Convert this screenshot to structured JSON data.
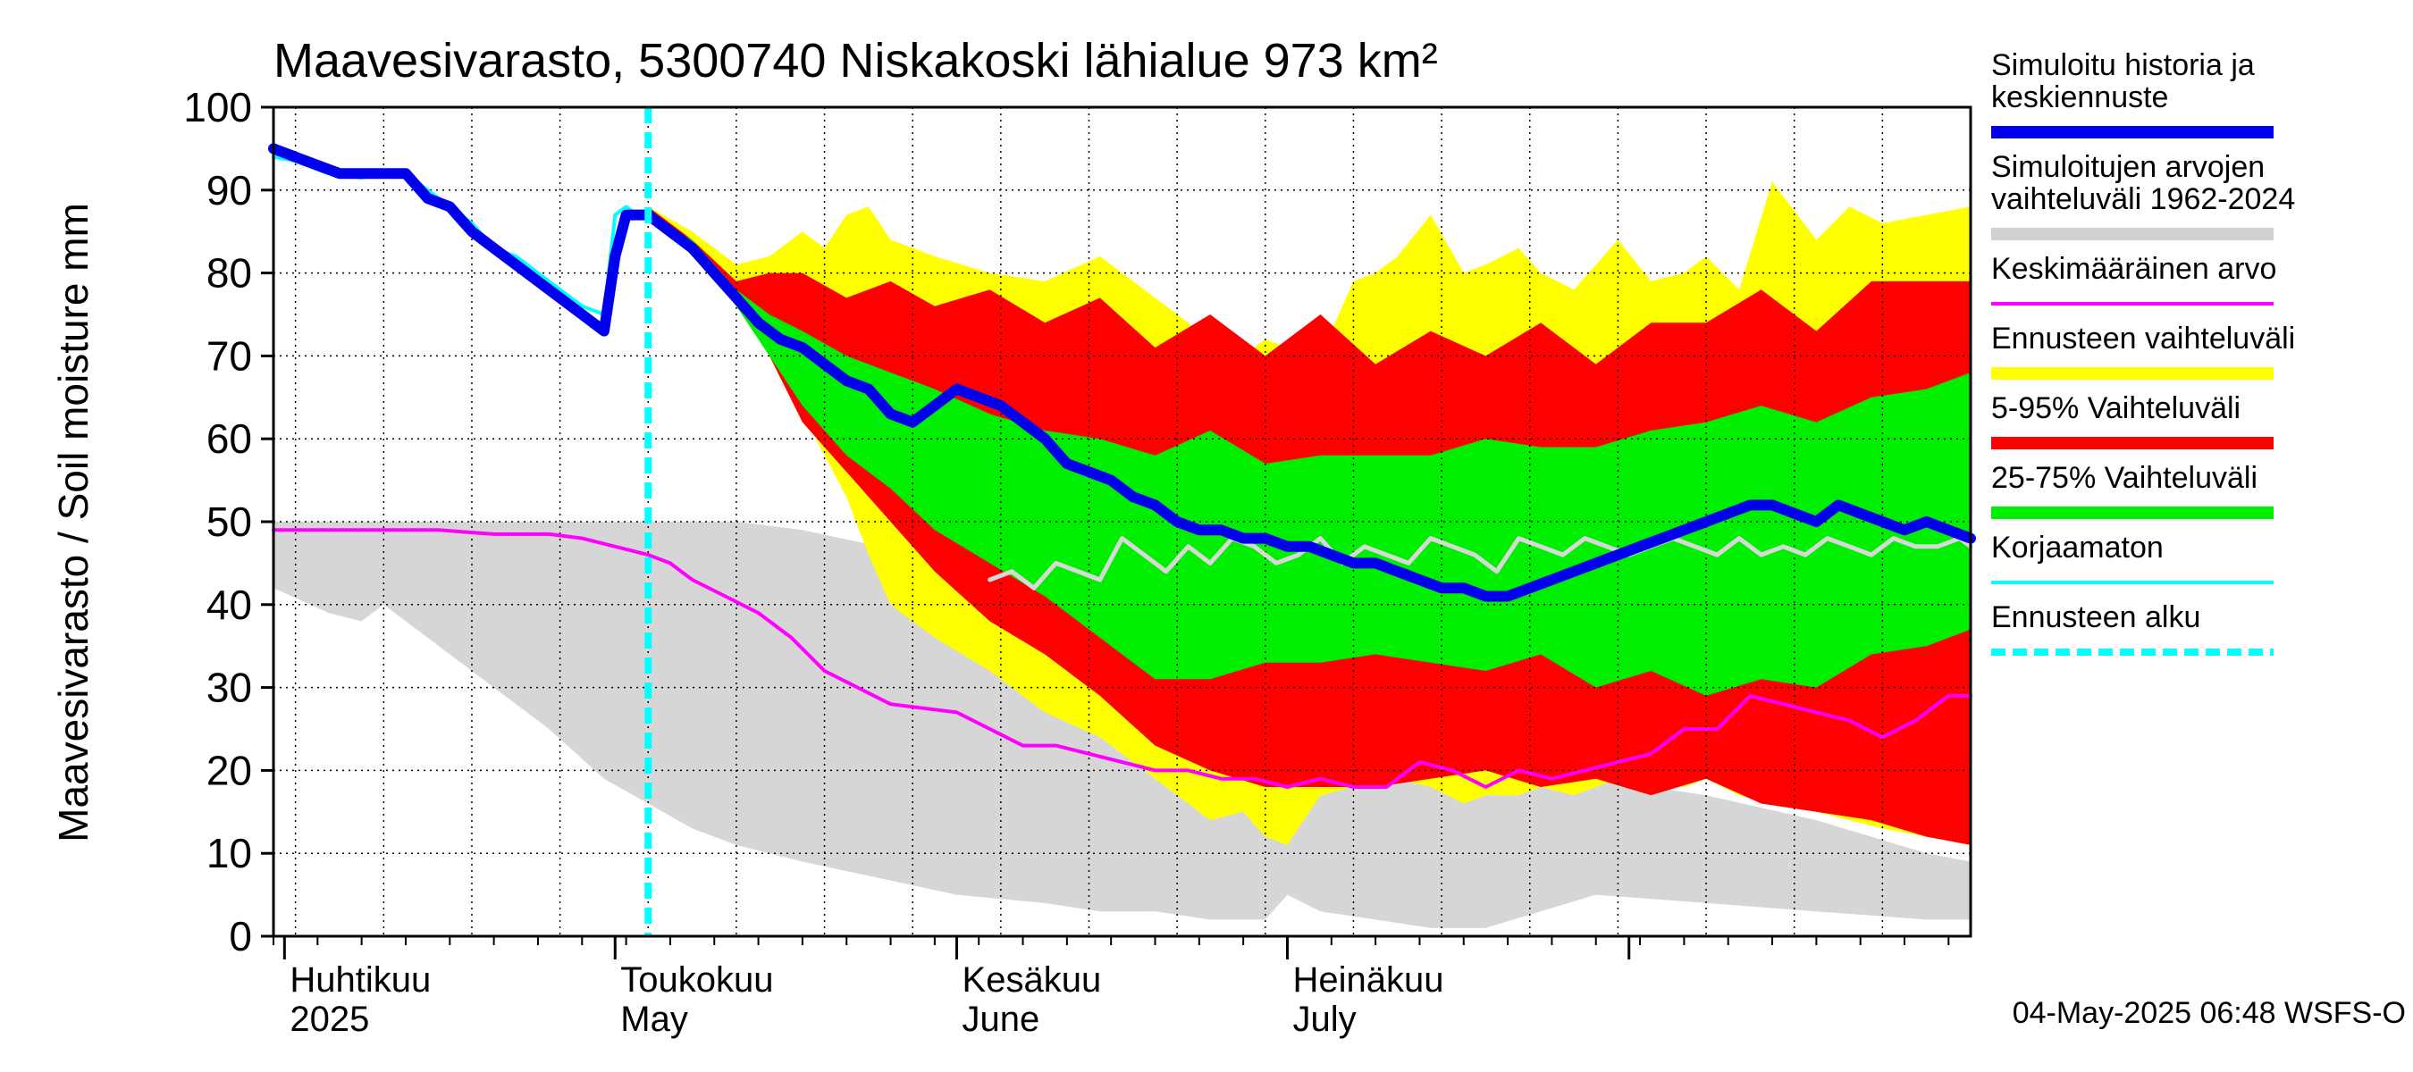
{
  "chart_data": {
    "type": "area",
    "title": "Maavesivarasto, 5300740 Niskakoski lähialue 973 km²",
    "ylabel": "Maavesivarasto / Soil moisture   mm",
    "ylim": [
      0,
      100
    ],
    "yticks": [
      0,
      10,
      20,
      30,
      40,
      50,
      60,
      70,
      80,
      90,
      100
    ],
    "x_unit": "day of year 2025",
    "xlim": [
      90,
      244
    ],
    "forecast_start_day": 124,
    "month_labels": [
      {
        "day": 91,
        "fi": "Huhtikuu",
        "en": "2025"
      },
      {
        "day": 121,
        "fi": "Toukokuu",
        "en": "May"
      },
      {
        "day": 152,
        "fi": "Kesäkuu",
        "en": "June"
      },
      {
        "day": 182,
        "fi": "Heinäkuu",
        "en": "July"
      }
    ],
    "month_boundaries": [
      91,
      121,
      152,
      182,
      213
    ],
    "historical_range": {
      "x": [
        90,
        95,
        98,
        100,
        102,
        105,
        110,
        115,
        120,
        124,
        128,
        132,
        138,
        145,
        152,
        160,
        165,
        170,
        175,
        180,
        182,
        185,
        190,
        195,
        200,
        210,
        220,
        230,
        240,
        244
      ],
      "upper": [
        50,
        50,
        50,
        50,
        50,
        50,
        50,
        50,
        50,
        50,
        50,
        50,
        49,
        47,
        44,
        40,
        36,
        33,
        30,
        26,
        25,
        24,
        22,
        21,
        20,
        19,
        17,
        14,
        10,
        9
      ],
      "lower": [
        42,
        39,
        38,
        40,
        38,
        35,
        30,
        25,
        19,
        16,
        13,
        11,
        9,
        7,
        5,
        4,
        3,
        3,
        2,
        2,
        5,
        3,
        2,
        1,
        1,
        5,
        4,
        3,
        2,
        2
      ]
    },
    "series": [
      {
        "name": "Ennusteen vaihteluväli",
        "kind": "band",
        "x": [
          124,
          128,
          132,
          135,
          138,
          140,
          142,
          144,
          146,
          150,
          155,
          160,
          165,
          170,
          173,
          175,
          178,
          180,
          182,
          185,
          188,
          190,
          192,
          195,
          198,
          200,
          203,
          205,
          208,
          212,
          215,
          218,
          220,
          223,
          226,
          230,
          233,
          236,
          240,
          244
        ],
        "upper": [
          88,
          85,
          81,
          82,
          85,
          83,
          87,
          88,
          84,
          82,
          80,
          79,
          82,
          77,
          74,
          71,
          70,
          72,
          71,
          70,
          79,
          80,
          82,
          87,
          80,
          81,
          83,
          80,
          78,
          84,
          79,
          80,
          82,
          78,
          91,
          84,
          88,
          86,
          87,
          88
        ],
        "lower": [
          87,
          82,
          76,
          72,
          63,
          58,
          53,
          46,
          40,
          36,
          32,
          27,
          24,
          19,
          16,
          14,
          15,
          12,
          11,
          17,
          18,
          20,
          19,
          18,
          16,
          17,
          17,
          18,
          17,
          19,
          18,
          18,
          19,
          17,
          16,
          15,
          14,
          13,
          12,
          11
        ]
      },
      {
        "name": "5-95% Vaihteluväli",
        "kind": "band",
        "x": [
          124,
          128,
          132,
          135,
          138,
          142,
          146,
          150,
          155,
          160,
          165,
          170,
          175,
          180,
          185,
          190,
          195,
          200,
          205,
          210,
          215,
          220,
          225,
          230,
          235,
          240,
          244
        ],
        "upper": [
          88,
          84,
          79,
          80,
          80,
          77,
          79,
          76,
          78,
          74,
          77,
          71,
          75,
          70,
          75,
          69,
          73,
          70,
          74,
          69,
          74,
          74,
          78,
          73,
          79,
          79,
          79
        ],
        "lower": [
          87,
          83,
          77,
          70,
          62,
          56,
          50,
          44,
          38,
          34,
          29,
          23,
          20,
          18,
          18,
          18,
          19,
          20,
          18,
          19,
          17,
          19,
          16,
          15,
          14,
          12,
          11
        ]
      },
      {
        "name": "25-75% Vaihteluväli",
        "kind": "band",
        "x": [
          124,
          128,
          132,
          135,
          138,
          142,
          146,
          150,
          155,
          160,
          165,
          170,
          175,
          180,
          185,
          190,
          195,
          200,
          205,
          210,
          215,
          220,
          225,
          230,
          235,
          240,
          244
        ],
        "upper": [
          87,
          84,
          78,
          75,
          73,
          70,
          68,
          66,
          63,
          61,
          60,
          58,
          61,
          57,
          58,
          58,
          58,
          60,
          59,
          59,
          61,
          62,
          64,
          62,
          65,
          66,
          68
        ],
        "lower": [
          87,
          83,
          76,
          70,
          64,
          58,
          54,
          49,
          45,
          41,
          36,
          31,
          31,
          33,
          33,
          34,
          33,
          32,
          34,
          30,
          32,
          29,
          31,
          30,
          34,
          35,
          37
        ]
      },
      {
        "name": "Simuloitujen arvojen vaihteluväli 1962-2024 (median of uncorrected)",
        "kind": "line",
        "color": "#d8d8d8",
        "x": [
          155,
          157,
          159,
          161,
          163,
          165,
          167,
          169,
          171,
          173,
          175,
          177,
          179,
          181,
          183,
          185,
          187,
          189,
          191,
          193,
          195,
          197,
          199,
          201,
          203,
          205,
          207,
          209,
          211,
          213,
          215,
          217,
          219,
          221,
          223,
          225,
          227,
          229,
          231,
          233,
          235,
          237,
          239,
          241,
          243,
          244
        ],
        "y": [
          43,
          44,
          42,
          45,
          44,
          43,
          48,
          46,
          44,
          47,
          45,
          48,
          47,
          45,
          46,
          48,
          45,
          47,
          46,
          45,
          48,
          47,
          46,
          44,
          48,
          47,
          46,
          48,
          47,
          46,
          47,
          48,
          47,
          46,
          48,
          46,
          47,
          46,
          48,
          47,
          46,
          48,
          47,
          47,
          48,
          47
        ]
      },
      {
        "name": "Keskimääräinen arvo",
        "kind": "line",
        "color": "#ff00ff",
        "x": [
          90,
          95,
          100,
          105,
          110,
          115,
          118,
          121,
          124,
          126,
          128,
          131,
          134,
          137,
          140,
          143,
          146,
          149,
          152,
          155,
          158,
          161,
          164,
          167,
          170,
          173,
          176,
          179,
          182,
          185,
          188,
          191,
          194,
          197,
          200,
          203,
          206,
          209,
          212,
          215,
          218,
          221,
          224,
          227,
          230,
          233,
          236,
          239,
          242,
          244
        ],
        "y": [
          49,
          49,
          49,
          49,
          48.5,
          48.5,
          48,
          47,
          46,
          45,
          43,
          41,
          39,
          36,
          32,
          30,
          28,
          27.5,
          27,
          25,
          23,
          23,
          22,
          21,
          20,
          20,
          19,
          19,
          18,
          19,
          18,
          18,
          21,
          20,
          18,
          20,
          19,
          20,
          21,
          22,
          25,
          25,
          29,
          28,
          27,
          26,
          24,
          26,
          29,
          29
        ]
      },
      {
        "name": "Korjaamaton",
        "kind": "line",
        "color": "#00ffff",
        "x": [
          90,
          92,
          95,
          98,
          100,
          102,
          104,
          106,
          108,
          110,
          112,
          114,
          116,
          118,
          120,
          121,
          122,
          123
        ],
        "y": [
          94,
          93.5,
          92,
          91.5,
          92,
          92,
          90,
          88,
          86,
          83,
          82,
          80,
          78,
          76,
          75,
          87,
          88,
          87
        ]
      },
      {
        "name": "Simuloitu historia ja keskiennuste",
        "kind": "line",
        "color": "#0000ee",
        "x": [
          90,
          92,
          94,
          96,
          98,
          100,
          102,
          104,
          106,
          108,
          110,
          112,
          114,
          116,
          118,
          120,
          121,
          122,
          123,
          124,
          126,
          128,
          130,
          132,
          134,
          136,
          138,
          140,
          142,
          144,
          146,
          148,
          150,
          152,
          154,
          156,
          158,
          160,
          162,
          164,
          166,
          168,
          170,
          172,
          174,
          176,
          178,
          180,
          182,
          184,
          186,
          188,
          190,
          192,
          194,
          196,
          198,
          200,
          202,
          204,
          206,
          208,
          210,
          212,
          214,
          216,
          218,
          220,
          222,
          224,
          226,
          228,
          230,
          232,
          234,
          236,
          238,
          240,
          242,
          244
        ],
        "y": [
          95,
          94,
          93,
          92,
          92,
          92,
          92,
          89,
          88,
          85,
          83,
          81,
          79,
          77,
          75,
          73,
          82,
          87,
          87,
          87,
          85,
          83,
          80,
          77,
          74,
          72,
          71,
          69,
          67,
          66,
          63,
          62,
          64,
          66,
          65,
          64,
          62,
          60,
          57,
          56,
          55,
          53,
          52,
          50,
          49,
          49,
          48,
          48,
          47,
          47,
          46,
          45,
          45,
          44,
          43,
          42,
          42,
          41,
          41,
          42,
          43,
          44,
          45,
          46,
          47,
          48,
          49,
          50,
          51,
          52,
          52,
          51,
          50,
          52,
          51,
          50,
          49,
          50,
          49,
          48
        ]
      }
    ],
    "legend": [
      {
        "label": "Simuloitu historia ja keskiennuste",
        "color": "#0000ee",
        "style": "thick"
      },
      {
        "label": "Simuloitujen arvojen vaihteluväli 1962-2024",
        "color": "#d0d0d0",
        "style": "thick"
      },
      {
        "label": "Keskimääräinen arvo",
        "color": "#ff00ff",
        "style": "thin"
      },
      {
        "label": "Ennusteen vaihteluväli",
        "color": "#ffff00",
        "style": "thick"
      },
      {
        "label": "5-95% Vaihteluväli",
        "color": "#ff0000",
        "style": "thick"
      },
      {
        "label": "25-75% Vaihteluväli",
        "color": "#00ee00",
        "style": "thick"
      },
      {
        "label": "Korjaamaton",
        "color": "#00ffff",
        "style": "thin"
      },
      {
        "label": "Ennusteen alku",
        "color": "#00ffff",
        "style": "dashed"
      }
    ],
    "legend_placement": "right",
    "footer": "04-May-2025 06:48 WSFS-O",
    "grid": true
  }
}
